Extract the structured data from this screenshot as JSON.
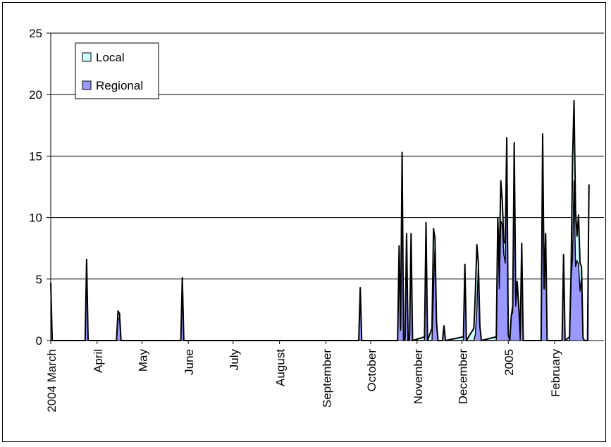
{
  "chart_data": {
    "type": "area",
    "stacked": true,
    "title": "",
    "xlabel": "",
    "ylabel": "",
    "ylim": [
      0,
      25
    ],
    "y_ticks": [
      0,
      5,
      10,
      15,
      20,
      25
    ],
    "grid": true,
    "legend_placement": "top-left",
    "x_range": [
      "2004-03-01",
      "2005-03-06"
    ],
    "month_ticks": [
      {
        "label": "2004 March",
        "date": "2004-03-01"
      },
      {
        "label": "April",
        "date": "2004-04-01"
      },
      {
        "label": "May",
        "date": "2004-05-01"
      },
      {
        "label": "June",
        "date": "2004-06-01"
      },
      {
        "label": "July",
        "date": "2004-07-01"
      },
      {
        "label": "August",
        "date": "2004-08-01"
      },
      {
        "label": "September",
        "date": "2004-09-01"
      },
      {
        "label": "October",
        "date": "2004-10-01"
      },
      {
        "label": "November",
        "date": "2004-11-01"
      },
      {
        "label": "December",
        "date": "2004-12-01"
      },
      {
        "label": "2005",
        "date": "2005-01-01"
      },
      {
        "label": "February",
        "date": "2005-02-01"
      }
    ],
    "series": [
      {
        "name": "Local",
        "color": "#ccffff",
        "points": [
          [
            "2004-03-01",
            0
          ],
          [
            "2004-03-02",
            0
          ],
          [
            "2004-03-24",
            0
          ],
          [
            "2004-03-25",
            0.2
          ],
          [
            "2004-03-26",
            0
          ],
          [
            "2004-04-14",
            0
          ],
          [
            "2004-04-15",
            0.6
          ],
          [
            "2004-04-16",
            0.4
          ],
          [
            "2004-04-17",
            0
          ],
          [
            "2004-05-27",
            0
          ],
          [
            "2004-05-28",
            0
          ],
          [
            "2004-05-29",
            0
          ],
          [
            "2004-09-23",
            0
          ],
          [
            "2004-09-24",
            0.2
          ],
          [
            "2004-09-25",
            0
          ],
          [
            "2004-10-19",
            0
          ],
          [
            "2004-10-20",
            0
          ],
          [
            "2004-10-22",
            0.2
          ],
          [
            "2004-10-23",
            0
          ],
          [
            "2004-10-24",
            0
          ],
          [
            "2004-10-25",
            0.3
          ],
          [
            "2004-10-26",
            0
          ],
          [
            "2004-10-27",
            0
          ],
          [
            "2004-10-28",
            0.4
          ],
          [
            "2004-10-29",
            0
          ],
          [
            "2004-11-06",
            0
          ],
          [
            "2004-11-07",
            0.3
          ],
          [
            "2004-11-08",
            0
          ],
          [
            "2004-11-11",
            0
          ],
          [
            "2004-11-12",
            1.0
          ],
          [
            "2004-11-13",
            5.1
          ],
          [
            "2004-11-14",
            0.5
          ],
          [
            "2004-11-15",
            0
          ],
          [
            "2004-11-18",
            0
          ],
          [
            "2004-11-19",
            0
          ],
          [
            "2004-11-20",
            0
          ],
          [
            "2004-12-02",
            0
          ],
          [
            "2004-12-03",
            0.3
          ],
          [
            "2004-12-04",
            0
          ],
          [
            "2004-12-09",
            0
          ],
          [
            "2004-12-10",
            1.0
          ],
          [
            "2004-12-11",
            3.4
          ],
          [
            "2004-12-12",
            5.2
          ],
          [
            "2004-12-13",
            0.2
          ],
          [
            "2004-12-14",
            0
          ],
          [
            "2004-12-24",
            0
          ],
          [
            "2004-12-25",
            0.3
          ],
          [
            "2004-12-26",
            0
          ],
          [
            "2004-12-27",
            2.0
          ],
          [
            "2004-12-28",
            3.3
          ],
          [
            "2004-12-29",
            2.0
          ],
          [
            "2004-12-30",
            1.0
          ],
          [
            "2004-12-31",
            1.6
          ],
          [
            "2005-01-01",
            2.5
          ],
          [
            "2005-01-02",
            0
          ],
          [
            "2005-01-03",
            0
          ],
          [
            "2005-01-04",
            0
          ],
          [
            "2005-01-05",
            0.5
          ],
          [
            "2005-01-06",
            0
          ],
          [
            "2005-01-07",
            0.5
          ],
          [
            "2005-01-08",
            0.3
          ],
          [
            "2005-01-09",
            0
          ],
          [
            "2005-01-10",
            0.5
          ],
          [
            "2005-01-11",
            0
          ],
          [
            "2005-01-23",
            0
          ],
          [
            "2005-01-24",
            0
          ],
          [
            "2005-01-25",
            0
          ],
          [
            "2005-01-26",
            0
          ],
          [
            "2005-01-27",
            0
          ],
          [
            "2005-02-06",
            0
          ],
          [
            "2005-02-07",
            0
          ],
          [
            "2005-02-08",
            0
          ],
          [
            "2005-02-11",
            0
          ],
          [
            "2005-02-12",
            0.3
          ],
          [
            "2005-02-13",
            0.5
          ],
          [
            "2005-02-14",
            8.0
          ],
          [
            "2005-02-15",
            6.5
          ],
          [
            "2005-02-16",
            4.5
          ],
          [
            "2005-02-17",
            2.0
          ],
          [
            "2005-02-18",
            4.0
          ],
          [
            "2005-02-19",
            2.3
          ],
          [
            "2005-02-20",
            0.8
          ],
          [
            "2005-02-21",
            0
          ],
          [
            "2005-02-23",
            0
          ],
          [
            "2005-02-24",
            0
          ]
        ]
      },
      {
        "name": "Regional",
        "color": "#9999ff",
        "points": [
          [
            "2004-03-01",
            4.7
          ],
          [
            "2004-03-02",
            0
          ],
          [
            "2004-03-24",
            0
          ],
          [
            "2004-03-25",
            6.4
          ],
          [
            "2004-03-26",
            0
          ],
          [
            "2004-04-14",
            0
          ],
          [
            "2004-04-15",
            1.8
          ],
          [
            "2004-04-16",
            1.8
          ],
          [
            "2004-04-17",
            0
          ],
          [
            "2004-05-27",
            0
          ],
          [
            "2004-05-28",
            5.1
          ],
          [
            "2004-05-29",
            0
          ],
          [
            "2004-09-23",
            0
          ],
          [
            "2004-09-24",
            4.1
          ],
          [
            "2004-09-25",
            0
          ],
          [
            "2004-10-19",
            0
          ],
          [
            "2004-10-20",
            7.7
          ],
          [
            "2004-10-21",
            0.8
          ],
          [
            "2004-10-22",
            15.3
          ],
          [
            "2004-10-23",
            0
          ],
          [
            "2004-10-24",
            0
          ],
          [
            "2004-10-25",
            8.7
          ],
          [
            "2004-10-26",
            0
          ],
          [
            "2004-10-27",
            0
          ],
          [
            "2004-10-28",
            8.7
          ],
          [
            "2004-10-29",
            0
          ],
          [
            "2004-11-06",
            0
          ],
          [
            "2004-11-07",
            9.6
          ],
          [
            "2004-11-08",
            0
          ],
          [
            "2004-11-11",
            0
          ],
          [
            "2004-11-12",
            4.0
          ],
          [
            "2004-11-13",
            7.8
          ],
          [
            "2004-11-14",
            1.5
          ],
          [
            "2004-11-15",
            0
          ],
          [
            "2004-11-18",
            0
          ],
          [
            "2004-11-19",
            1.2
          ],
          [
            "2004-11-20",
            0
          ],
          [
            "2004-12-02",
            0
          ],
          [
            "2004-12-03",
            6.2
          ],
          [
            "2004-12-04",
            0
          ],
          [
            "2004-12-09",
            0
          ],
          [
            "2004-12-10",
            0.5
          ],
          [
            "2004-12-11",
            2.6
          ],
          [
            "2004-12-12",
            6.1
          ],
          [
            "2004-12-13",
            1.2
          ],
          [
            "2004-12-14",
            0
          ],
          [
            "2004-12-24",
            0
          ],
          [
            "2004-12-25",
            10.0
          ],
          [
            "2004-12-26",
            4.2
          ],
          [
            "2004-12-27",
            9.7
          ],
          [
            "2004-12-28",
            9.4
          ],
          [
            "2004-12-29",
            7.0
          ],
          [
            "2004-12-30",
            6.3
          ],
          [
            "2004-12-31",
            14.0
          ],
          [
            "2005-01-01",
            0.5
          ],
          [
            "2005-01-02",
            0
          ],
          [
            "2005-01-03",
            2.0
          ],
          [
            "2005-01-04",
            2.3
          ],
          [
            "2005-01-05",
            16.1
          ],
          [
            "2005-01-06",
            2.8
          ],
          [
            "2005-01-07",
            4.5
          ],
          [
            "2005-01-08",
            2.8
          ],
          [
            "2005-01-09",
            0
          ],
          [
            "2005-01-10",
            7.9
          ],
          [
            "2005-01-11",
            0
          ],
          [
            "2005-01-23",
            0
          ],
          [
            "2005-01-24",
            16.8
          ],
          [
            "2005-01-25",
            4.2
          ],
          [
            "2005-01-26",
            8.7
          ],
          [
            "2005-01-27",
            0
          ],
          [
            "2005-02-06",
            0
          ],
          [
            "2005-02-07",
            7.0
          ],
          [
            "2005-02-08",
            0
          ],
          [
            "2005-02-11",
            0
          ],
          [
            "2005-02-12",
            5.0
          ],
          [
            "2005-02-13",
            6.7
          ],
          [
            "2005-02-14",
            13.0
          ],
          [
            "2005-02-15",
            6.0
          ],
          [
            "2005-02-16",
            6.5
          ],
          [
            "2005-02-17",
            6.2
          ],
          [
            "2005-02-18",
            4.0
          ],
          [
            "2005-02-19",
            5.2
          ],
          [
            "2005-02-20",
            0.2
          ],
          [
            "2005-02-21",
            0
          ],
          [
            "2005-02-23",
            0
          ],
          [
            "2005-02-24",
            12.7
          ]
        ]
      }
    ]
  }
}
